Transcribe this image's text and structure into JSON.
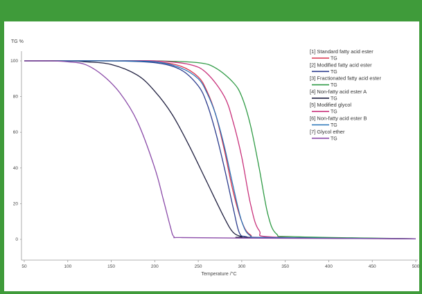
{
  "chart_data": {
    "type": "line",
    "title": "",
    "ylabel": "TG %",
    "xlabel": "Temperature /°C",
    "xlim": [
      50,
      500
    ],
    "ylim": [
      0,
      100
    ],
    "x_ticks": [
      50,
      100,
      150,
      200,
      250,
      300,
      350,
      400,
      450,
      500
    ],
    "y_ticks": [
      0,
      20,
      40,
      60,
      80,
      100
    ],
    "grid": false,
    "legend_position": "top-right",
    "series": [
      {
        "name": "[1] Standard fatty acid ester",
        "sub": "TG",
        "color": "#d9304a",
        "x": [
          50,
          100,
          150,
          200,
          230,
          250,
          260,
          270,
          280,
          290,
          300,
          310,
          330,
          500
        ],
        "y": [
          100,
          100,
          100,
          99.5,
          97,
          91,
          83,
          70,
          50,
          27,
          10,
          2.5,
          1,
          0.3
        ]
      },
      {
        "name": "[2] Modified fatty acid ester",
        "sub": "TG",
        "color": "#2a3a8c",
        "x": [
          50,
          100,
          150,
          200,
          230,
          250,
          260,
          270,
          280,
          290,
          297,
          305,
          330,
          500
        ],
        "y": [
          100,
          100,
          100,
          99,
          95,
          86,
          76,
          60,
          40,
          18,
          4,
          1.5,
          1,
          0.3
        ]
      },
      {
        "name": "[3] Fractionated fatty acid ester",
        "sub": "TG",
        "color": "#2e9a44",
        "x": [
          50,
          100,
          150,
          200,
          250,
          270,
          290,
          300,
          310,
          320,
          330,
          340,
          360,
          500
        ],
        "y": [
          100,
          100,
          100,
          100,
          99,
          96,
          88,
          80,
          64,
          40,
          14,
          3,
          1.5,
          0.3
        ]
      },
      {
        "name": "[4] Non-fatty acid ester A",
        "sub": "TG",
        "color": "#1e1e3e",
        "x": [
          50,
          100,
          120,
          150,
          180,
          200,
          220,
          240,
          260,
          280,
          290,
          300,
          310,
          500
        ],
        "y": [
          100,
          100,
          99.5,
          98,
          92,
          83,
          70,
          52,
          32,
          12,
          4,
          1.5,
          1,
          0.3
        ]
      },
      {
        "name": "[5] Modified glycol",
        "sub": "TG",
        "color": "#c8307a",
        "x": [
          50,
          100,
          150,
          200,
          240,
          260,
          280,
          290,
          300,
          310,
          320,
          340,
          500
        ],
        "y": [
          100,
          100,
          100,
          100,
          98,
          93,
          80,
          66,
          46,
          20,
          5,
          1.2,
          0.3
        ]
      },
      {
        "name": "[6] Non-fatty acid ester B",
        "sub": "TG",
        "color": "#2673b8",
        "x": [
          50,
          100,
          150,
          200,
          230,
          250,
          260,
          270,
          280,
          290,
          300,
          310,
          330,
          500
        ],
        "y": [
          100,
          100,
          100,
          99.5,
          96,
          90,
          82,
          70,
          52,
          30,
          10,
          2,
          1,
          0.3
        ]
      },
      {
        "name": "[7] Glycol ether",
        "sub": "TG",
        "color": "#8a4aa8",
        "x": [
          50,
          80,
          100,
          120,
          140,
          160,
          180,
          200,
          210,
          218,
          222,
          230,
          300,
          500
        ],
        "y": [
          100,
          100,
          99.5,
          98,
          92,
          82,
          66,
          40,
          22,
          7,
          1.5,
          1,
          0.7,
          0.3
        ]
      }
    ]
  }
}
